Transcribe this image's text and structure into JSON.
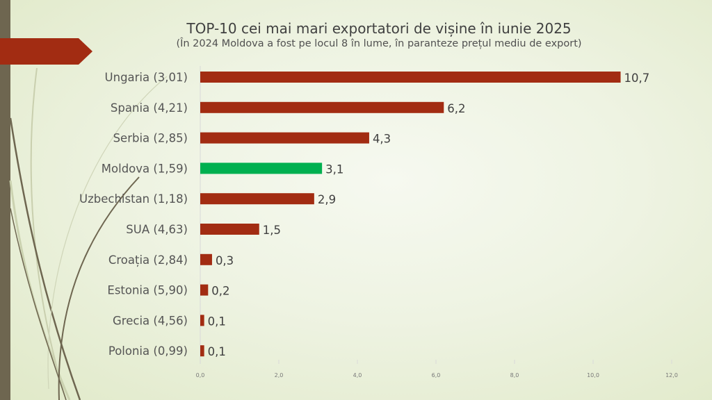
{
  "chart_data": {
    "type": "bar",
    "orientation": "horizontal",
    "title": "TOP-10 cei mai mari exportatori de vișine în iunie 2025",
    "subtitle": "(În 2024 Moldova a fost pe locul 8 în lume, în paranteze prețul mediu de export)",
    "categories": [
      "Ungaria (3,01)",
      "Spania (4,21)",
      "Serbia (2,85)",
      "Moldova (1,59)",
      "Uzbechistan (1,18)",
      "SUA (4,63)",
      "Croația (2,84)",
      "Estonia (5,90)",
      "Grecia (4,56)",
      "Polonia (0,99)"
    ],
    "values": [
      10.7,
      6.2,
      4.3,
      3.1,
      2.9,
      1.5,
      0.3,
      0.2,
      0.1,
      0.1
    ],
    "value_labels": [
      "10,7",
      "6,2",
      "4,3",
      "3,1",
      "2,9",
      "1,5",
      "0,3",
      "0,2",
      "0,1",
      "0,1"
    ],
    "highlight_index": 3,
    "xlim": [
      0,
      12
    ],
    "x_ticks": [
      "0,0",
      "2,0",
      "4,0",
      "6,0",
      "8,0",
      "10,0",
      "12,0"
    ],
    "x_tick_values": [
      0,
      2,
      4,
      6,
      8,
      10,
      12
    ],
    "grid": false,
    "legend": "none",
    "colors": {
      "bar": "#a22c12",
      "highlight": "#00b050"
    }
  },
  "colors": {
    "sidebar": "#6e6650",
    "banner": "#a22c12"
  }
}
